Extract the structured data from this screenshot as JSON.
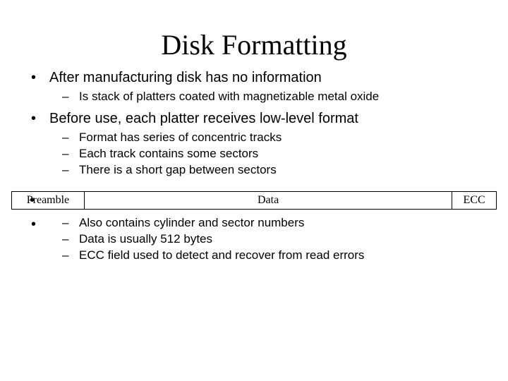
{
  "title": "Disk Formatting",
  "bullets": {
    "b1": "After manufacturing disk has no information",
    "b1_sub1": "Is stack of platters coated with magnetizable metal oxide",
    "b2": "Before use, each platter receives low-level format",
    "b2_sub1": "Format has series of concentric tracks",
    "b2_sub2": "Each track contains some sectors",
    "b2_sub3": "There is a short gap between sectors",
    "b3_sub1": "Also contains cylinder and sector numbers",
    "b3_sub2": "Data is usually 512 bytes",
    "b3_sub3": "ECC field used to detect and recover from read errors"
  },
  "diagram": {
    "segments": {
      "preamble": {
        "label": "Preamble",
        "width_pct": 15
      },
      "data": {
        "label": "Data",
        "width_pct": 76
      },
      "ecc": {
        "label": "ECC",
        "width_pct": 9
      }
    },
    "border_color": "#000000",
    "background_color": "#ffffff",
    "font_family": "Times New Roman",
    "font_size_pt": 12
  },
  "colors": {
    "text": "#000000",
    "background": "#ffffff"
  }
}
